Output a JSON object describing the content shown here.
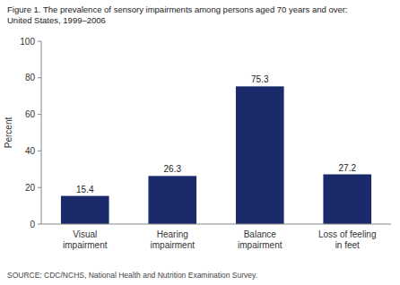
{
  "chart_data": {
    "type": "bar",
    "title": "Figure 1. The prevalence of sensory impairments among persons aged 70 years and over:",
    "subtitle": "United States, 1999–2006",
    "source": "SOURCE: CDC/NCHS, National Health and Nutrition Examination Survey.",
    "categories": [
      "Visual\nimpairment",
      "Hearing\nimpairment",
      "Balance\nimpairment",
      "Loss of feeling\nin feet"
    ],
    "values": [
      15.4,
      26.3,
      75.3,
      27.2
    ],
    "color": "#1b2a6b",
    "ylabel": "Percent",
    "ylim": [
      0,
      100
    ],
    "yticks": [
      0,
      20,
      40,
      60,
      80,
      100
    ],
    "grid": false,
    "data_labels": true
  }
}
